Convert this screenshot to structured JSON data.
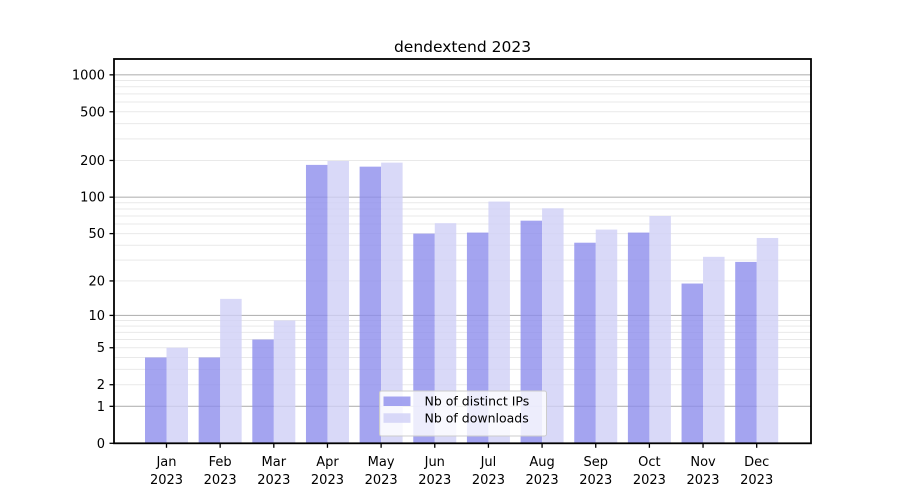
{
  "chart_data": {
    "type": "bar",
    "title": "dendextend 2023",
    "categories": [
      "Jan 2023",
      "Feb 2023",
      "Mar 2023",
      "Apr 2023",
      "May 2023",
      "Jun 2023",
      "Jul 2023",
      "Aug 2023",
      "Sep 2023",
      "Oct 2023",
      "Nov 2023",
      "Dec 2023"
    ],
    "series": [
      {
        "name": "Nb of distinct IPs",
        "color": "#8d8dec",
        "alpha": 0.8,
        "rendered_color": "#a4a4f0",
        "values": [
          4,
          4,
          6,
          184,
          178,
          50,
          51,
          64,
          42,
          51,
          19,
          29
        ]
      },
      {
        "name": "Nb of downloads",
        "color": "#d0d0f6",
        "alpha": 0.8,
        "rendered_color": "#d9d9f8",
        "values": [
          5,
          14,
          9,
          198,
          192,
          61,
          92,
          81,
          54,
          70,
          32,
          46
        ]
      }
    ],
    "xlabel": "",
    "ylabel": "",
    "y_axis": {
      "scale": "log1p",
      "tick_labels": [
        "0",
        "1",
        "2",
        "5",
        "10",
        "20",
        "50",
        "100",
        "200",
        "500",
        "1000"
      ],
      "tick_values": [
        0,
        1,
        2,
        5,
        10,
        20,
        50,
        100,
        200,
        500,
        1000
      ],
      "major_grid_values": [
        1,
        10,
        100,
        1000
      ],
      "ylim": [
        0,
        1345
      ]
    },
    "grid": "on",
    "legend": {
      "position": "lower center",
      "entries": [
        "Nb of distinct IPs",
        "Nb of downloads"
      ]
    },
    "colors": {
      "major_grid": "#b5b5b5",
      "minor_grid": "#e9e9e9",
      "spine": "#000000",
      "legend_border": "#cccccc",
      "legend_background": "rgba(255,255,255,0.8)",
      "background": "#ffffff"
    }
  }
}
